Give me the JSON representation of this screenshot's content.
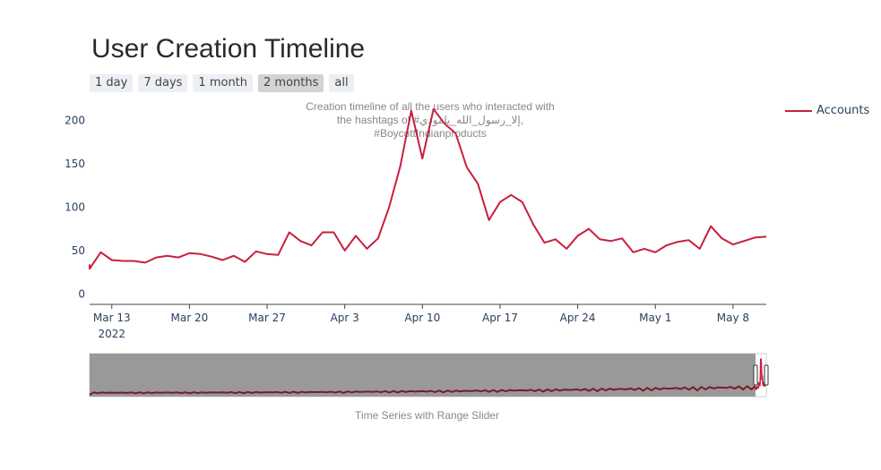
{
  "title": "User Creation Timeline",
  "range_buttons": [
    {
      "label": "1 day",
      "active": false
    },
    {
      "label": "7 days",
      "active": false
    },
    {
      "label": "1 month",
      "active": false
    },
    {
      "label": "2 months",
      "active": true
    },
    {
      "label": "all",
      "active": false
    }
  ],
  "annotation": {
    "line1": "Creation timeline of all the users who interacted with",
    "line2": "the hashtags of #إلا_رسول_الله_يامودي, #BoycottIndianproducts"
  },
  "legend": {
    "label": "Accounts"
  },
  "slider_caption": "Time Series with Range Slider",
  "colors": {
    "line": "#c71f3f",
    "slider_bg": "#999999",
    "slider_line": "#7a1a2a"
  },
  "chart_data": {
    "type": "line",
    "title": "User Creation Timeline",
    "xlabel": "",
    "ylabel": "",
    "ylim": [
      -12,
      220
    ],
    "xlim": [
      "2022-03-11",
      "2022-05-11"
    ],
    "yticks": [
      0,
      50,
      100,
      150,
      200
    ],
    "xticks": [
      {
        "date": "2022-03-13",
        "label": "Mar 13",
        "sublabel": "2022"
      },
      {
        "date": "2022-03-20",
        "label": "Mar 20",
        "sublabel": ""
      },
      {
        "date": "2022-03-27",
        "label": "Mar 27",
        "sublabel": ""
      },
      {
        "date": "2022-04-03",
        "label": "Apr 3",
        "sublabel": ""
      },
      {
        "date": "2022-04-10",
        "label": "Apr 10",
        "sublabel": ""
      },
      {
        "date": "2022-04-17",
        "label": "Apr 17",
        "sublabel": ""
      },
      {
        "date": "2022-04-24",
        "label": "Apr 24",
        "sublabel": ""
      },
      {
        "date": "2022-05-01",
        "label": "May 1",
        "sublabel": ""
      },
      {
        "date": "2022-05-08",
        "label": "May 8",
        "sublabel": ""
      }
    ],
    "grid": false,
    "legend_position": "top-right",
    "series": [
      {
        "name": "Accounts",
        "x": [
          "2022-03-11",
          "2022-03-11",
          "2022-03-12",
          "2022-03-13",
          "2022-03-14",
          "2022-03-15",
          "2022-03-16",
          "2022-03-17",
          "2022-03-18",
          "2022-03-19",
          "2022-03-20",
          "2022-03-21",
          "2022-03-22",
          "2022-03-23",
          "2022-03-24",
          "2022-03-25",
          "2022-03-26",
          "2022-03-27",
          "2022-03-28",
          "2022-03-29",
          "2022-03-30",
          "2022-03-31",
          "2022-04-01",
          "2022-04-02",
          "2022-04-03",
          "2022-04-04",
          "2022-04-05",
          "2022-04-06",
          "2022-04-07",
          "2022-04-08",
          "2022-04-09",
          "2022-04-10",
          "2022-04-11",
          "2022-04-12",
          "2022-04-13",
          "2022-04-14",
          "2022-04-15",
          "2022-04-16",
          "2022-04-17",
          "2022-04-18",
          "2022-04-19",
          "2022-04-20",
          "2022-04-21",
          "2022-04-22",
          "2022-04-23",
          "2022-04-24",
          "2022-04-25",
          "2022-04-26",
          "2022-04-27",
          "2022-04-28",
          "2022-04-29",
          "2022-04-30",
          "2022-05-01",
          "2022-05-02",
          "2022-05-03",
          "2022-05-04",
          "2022-05-05",
          "2022-05-06",
          "2022-05-07",
          "2022-05-08",
          "2022-05-09",
          "2022-05-10",
          "2022-05-11"
        ],
        "y": [
          34,
          29,
          48,
          39,
          38,
          38,
          36,
          42,
          44,
          42,
          47,
          46,
          43,
          39,
          44,
          37,
          49,
          46,
          45,
          71,
          61,
          56,
          71,
          71,
          50,
          67,
          52,
          64,
          100,
          147,
          211,
          156,
          213,
          196,
          185,
          146,
          127,
          85,
          106,
          114,
          106,
          80,
          59,
          63,
          52,
          67,
          75,
          63,
          61,
          64,
          48,
          52,
          48,
          56,
          60,
          62,
          52,
          78,
          64,
          57,
          61,
          65,
          66
        ]
      }
    ]
  }
}
